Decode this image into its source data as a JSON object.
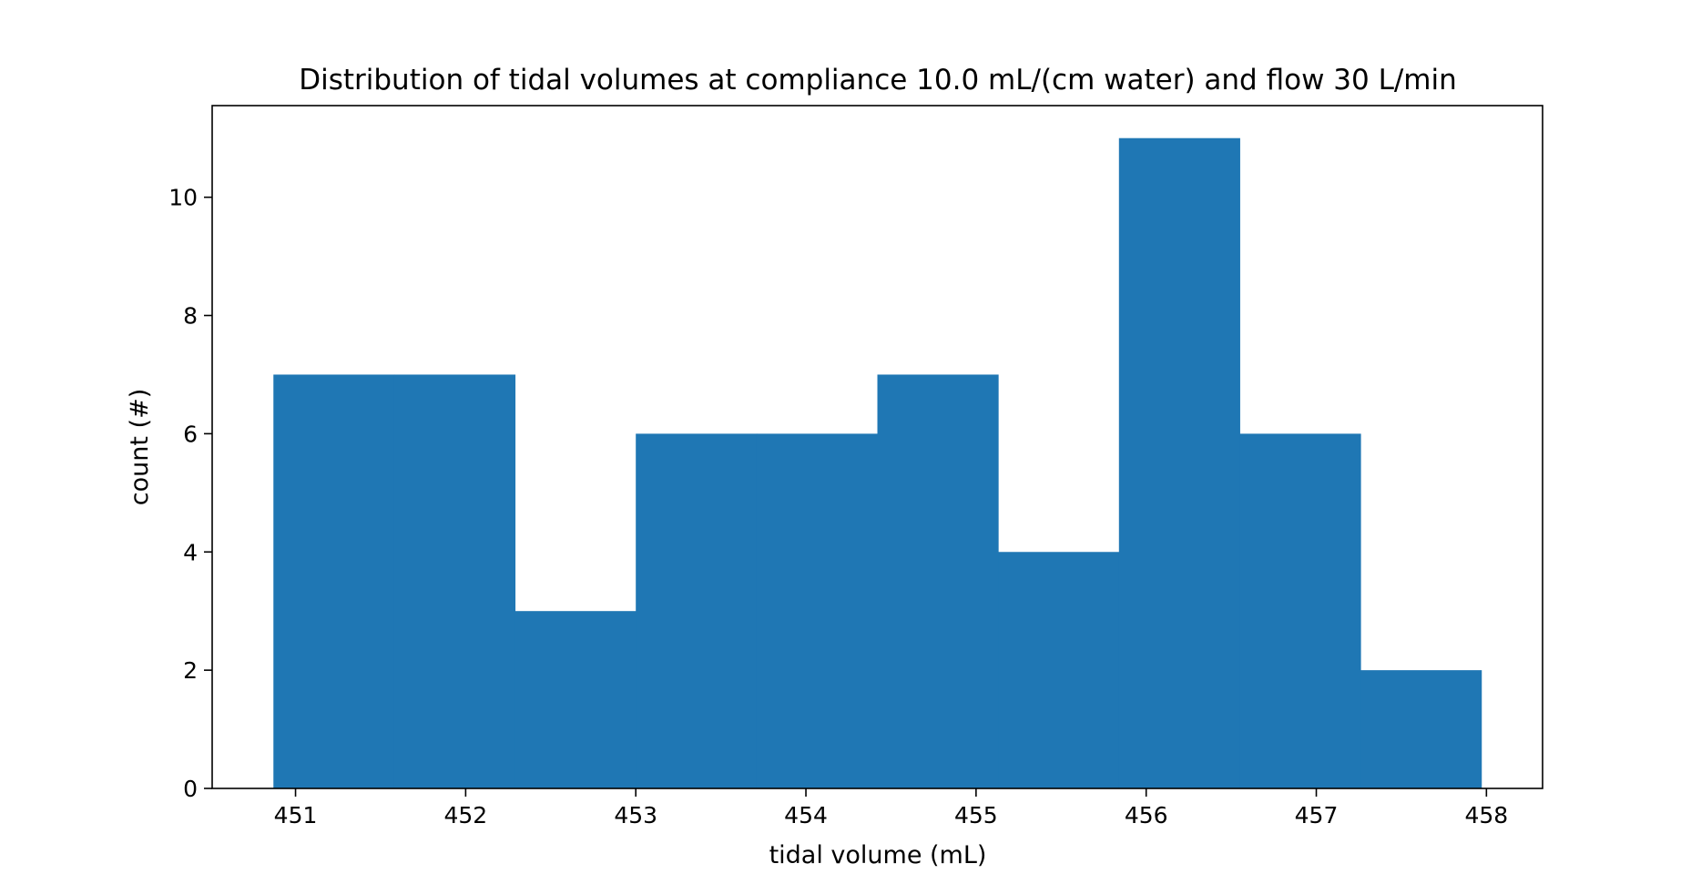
{
  "chart_data": {
    "type": "bar",
    "title": "Distribution of tidal volumes at compliance 10.0 mL/(cm water) and flow 30 L/min",
    "xlabel": "tidal volume (mL)",
    "ylabel": "count (#)",
    "xlim": [
      450.51,
      458.33
    ],
    "ylim": [
      0,
      11.55
    ],
    "xticks": [
      451,
      452,
      453,
      454,
      455,
      456,
      457,
      458
    ],
    "xtick_labels": [
      "451",
      "452",
      "453",
      "454",
      "455",
      "456",
      "457",
      "458"
    ],
    "yticks": [
      0,
      2,
      4,
      6,
      8,
      10
    ],
    "ytick_labels": [
      "0",
      "2",
      "4",
      "6",
      "8",
      "10"
    ],
    "grid": false,
    "color": "#1f77b4",
    "bins": [
      {
        "x0": 450.87,
        "x1": 451.58,
        "value": 7
      },
      {
        "x0": 451.58,
        "x1": 452.29,
        "value": 7
      },
      {
        "x0": 452.29,
        "x1": 453.0,
        "value": 3
      },
      {
        "x0": 453.0,
        "x1": 453.71,
        "value": 6
      },
      {
        "x0": 453.71,
        "x1": 454.42,
        "value": 6
      },
      {
        "x0": 454.42,
        "x1": 455.13,
        "value": 7
      },
      {
        "x0": 455.13,
        "x1": 455.84,
        "value": 4
      },
      {
        "x0": 455.84,
        "x1": 456.55,
        "value": 11
      },
      {
        "x0": 456.55,
        "x1": 457.26,
        "value": 6
      },
      {
        "x0": 457.26,
        "x1": 457.97,
        "value": 2
      }
    ]
  }
}
